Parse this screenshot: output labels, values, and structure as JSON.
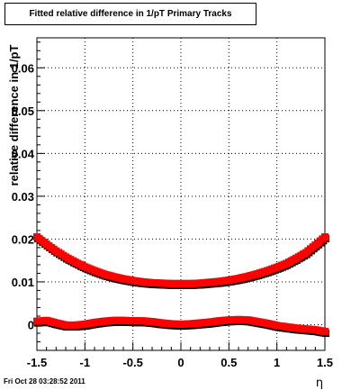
{
  "chart_data": {
    "type": "scatter",
    "title": "Fitted relative difference in 1/pT  Primary Tracks",
    "xlabel": "η",
    "ylabel": "relative difference in 1/pT",
    "xlim": [
      -1.5,
      1.5
    ],
    "ylim": [
      -0.006,
      0.067
    ],
    "x_ticks": [
      "-1.5",
      "-1",
      "-0.5",
      "0",
      "0.5",
      "1",
      "1.5"
    ],
    "y_ticks": [
      "0",
      "0.01",
      "0.02",
      "0.03",
      "0.04",
      "0.05",
      "0.06"
    ],
    "grid": true,
    "marker_color": "#ff0000",
    "shadow_color": "#000000",
    "series": [
      {
        "x": [
          -1.5,
          -1.4,
          -1.3,
          -1.2,
          -1.1,
          -1.0,
          -0.9,
          -0.8,
          -0.7,
          -0.6,
          -0.5,
          -0.4,
          -0.3,
          -0.2,
          -0.1,
          0.0,
          0.1,
          0.2,
          0.3,
          0.4,
          0.5,
          0.6,
          0.7,
          0.8,
          0.9,
          1.0,
          1.1,
          1.2,
          1.3,
          1.4,
          1.5
        ],
        "values": [
          0.0205,
          0.0188,
          0.0172,
          0.0158,
          0.0146,
          0.0135,
          0.0126,
          0.0118,
          0.0112,
          0.0107,
          0.0103,
          0.01,
          0.0098,
          0.0097,
          0.0096,
          0.0096,
          0.0096,
          0.0097,
          0.0099,
          0.0101,
          0.0104,
          0.0108,
          0.0113,
          0.0119,
          0.0126,
          0.0134,
          0.0143,
          0.0155,
          0.0168,
          0.0186,
          0.0205
        ]
      },
      {
        "x": [
          -1.5,
          -1.4,
          -1.3,
          -1.2,
          -1.1,
          -1.0,
          -0.9,
          -0.8,
          -0.7,
          -0.6,
          -0.5,
          -0.4,
          -0.3,
          -0.2,
          -0.1,
          0.0,
          0.1,
          0.2,
          0.3,
          0.4,
          0.5,
          0.6,
          0.7,
          0.8,
          0.9,
          1.0,
          1.1,
          1.2,
          1.3,
          1.4,
          1.5
        ],
        "values": [
          0.0008,
          0.001,
          0.0004,
          -0.0001,
          -0.0001,
          0.0001,
          0.0005,
          0.0008,
          0.001,
          0.001,
          0.0009,
          0.0009,
          0.0007,
          0.0004,
          0.0002,
          0.0001,
          0.0002,
          0.0004,
          0.0006,
          0.0009,
          0.0011,
          0.0012,
          0.0011,
          0.0007,
          0.0003,
          -0.0002,
          -0.0005,
          -0.0008,
          -0.001,
          -0.0012,
          -0.0016
        ]
      }
    ]
  },
  "footer": {
    "timestamp": "Fri Oct 28 03:28:52 2011"
  }
}
